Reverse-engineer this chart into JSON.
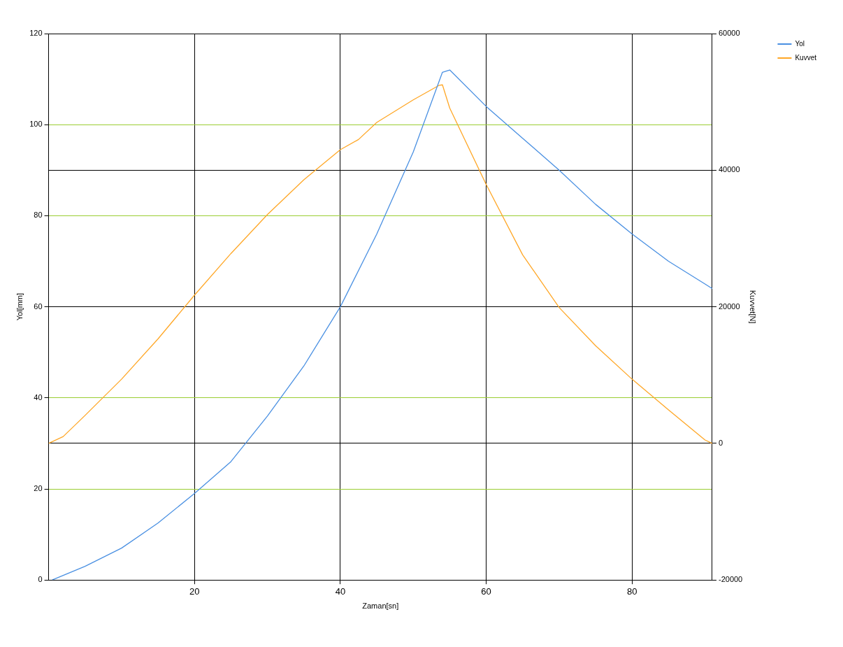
{
  "chart_data": {
    "type": "line",
    "xlabel": "Zaman[sn]",
    "ylabel": "Yol[mm]",
    "y2label": "Kuvvet[N]",
    "xlim": [
      0,
      91
    ],
    "xticks": [
      20,
      40,
      60,
      80
    ],
    "ylim": [
      0,
      120
    ],
    "yticks": [
      0,
      20,
      40,
      60,
      80,
      100,
      120
    ],
    "y2lim": [
      -20000,
      60000
    ],
    "y2ticks": [
      -20000,
      0,
      20000,
      40000,
      60000
    ],
    "grid": true,
    "legend": "right",
    "marker": "none",
    "line_style": "solid",
    "series": [
      {
        "name": "Yol",
        "color": "#4a90e2",
        "x": [
          0.5,
          2,
          5,
          10,
          15,
          20,
          25,
          30,
          35,
          40,
          45,
          50,
          54,
          55,
          60,
          65,
          70,
          75,
          80,
          85,
          90,
          91
        ],
        "values": [
          0,
          1,
          3,
          7,
          12.5,
          19,
          26,
          36,
          47,
          60,
          76,
          94,
          111.5,
          112,
          104,
          97,
          90,
          82.5,
          76,
          70,
          65,
          64
        ]
      },
      {
        "name": "Kuvvet",
        "color": "#ffa726",
        "axis": "y2",
        "x": [
          0,
          2,
          5,
          10,
          15,
          20,
          25,
          30,
          35,
          40,
          42.5,
          45,
          50,
          53.5,
          54,
          55,
          60,
          65,
          70,
          75,
          80,
          85,
          90,
          91
        ],
        "values": [
          0,
          1000,
          4100,
          9400,
          15300,
          21700,
          27800,
          33500,
          38600,
          43000,
          44500,
          47000,
          50300,
          52400,
          52500,
          49100,
          37900,
          27600,
          19900,
          14300,
          9400,
          4900,
          500,
          0
        ]
      }
    ]
  }
}
